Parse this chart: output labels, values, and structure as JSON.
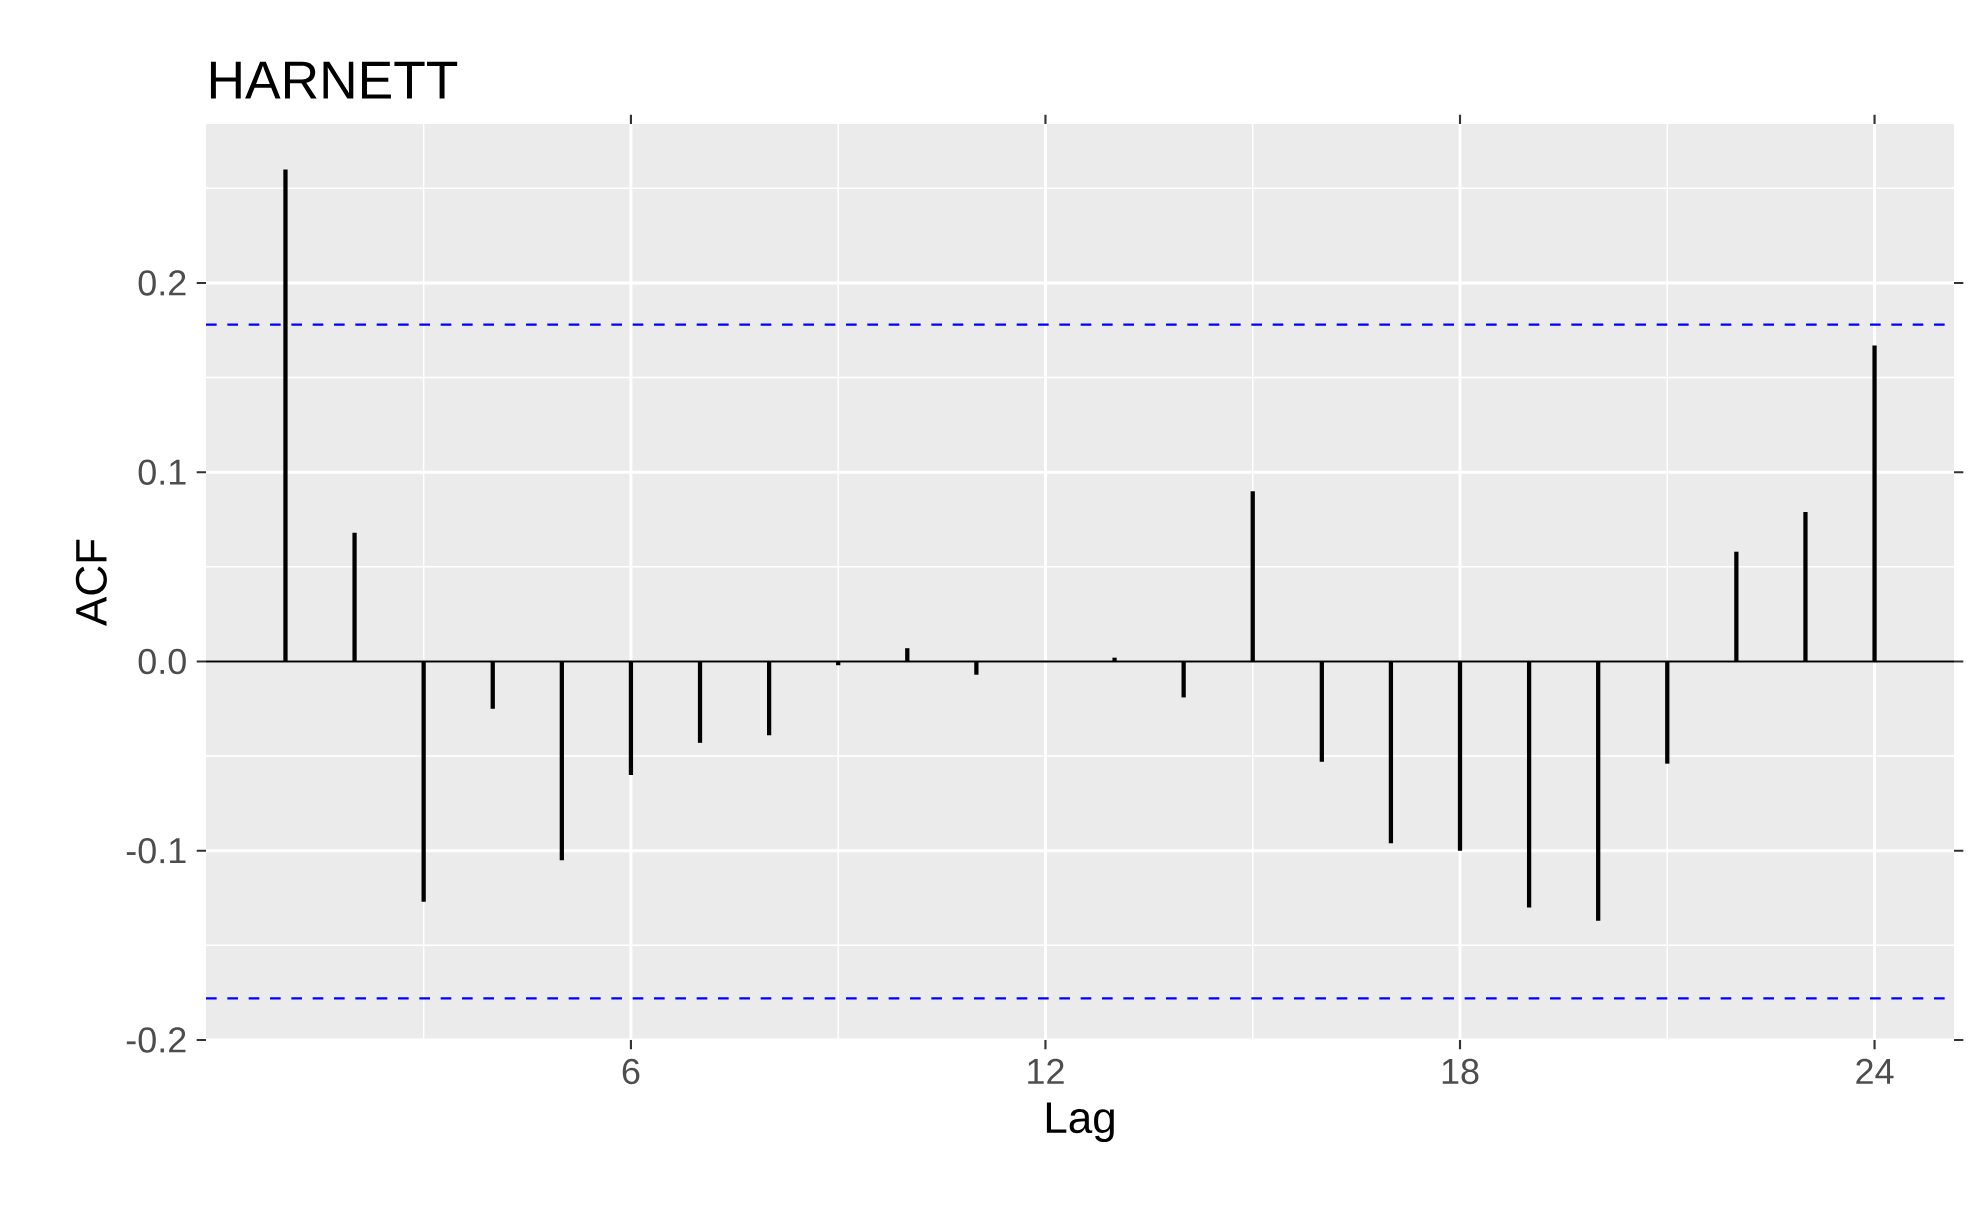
{
  "chart_data": {
    "type": "bar",
    "title": "HARNETT",
    "xlabel": "Lag",
    "ylabel": "ACF",
    "color": "#000000",
    "x": [
      1,
      2,
      3,
      4,
      5,
      6,
      7,
      8,
      9,
      10,
      11,
      12,
      13,
      14,
      15,
      16,
      17,
      18,
      19,
      20,
      21,
      22,
      23,
      24
    ],
    "values": [
      0.26,
      0.068,
      -0.127,
      -0.025,
      -0.105,
      -0.06,
      -0.043,
      -0.039,
      -0.002,
      0.007,
      -0.007,
      0.0,
      0.002,
      -0.019,
      0.09,
      -0.053,
      -0.096,
      -0.1,
      -0.13,
      -0.137,
      -0.054,
      0.058,
      0.079,
      0.167
    ],
    "xlim": [
      -0.15,
      25.15
    ],
    "ylim": [
      -0.2,
      0.284
    ],
    "xticks": [
      6,
      12,
      18,
      24
    ],
    "yticks": [
      {
        "value": -0.2,
        "label": "-0.2"
      },
      {
        "value": -0.1,
        "label": "-0.1"
      },
      {
        "value": 0,
        "label": "0.0"
      },
      {
        "value": 0.1,
        "label": "0.1"
      },
      {
        "value": 0.2,
        "label": "0.2"
      }
    ],
    "grid": true,
    "ref_lines": [
      {
        "axis": "y",
        "value": 0.178,
        "color": "#0000ff",
        "line_style": "dashed"
      },
      {
        "axis": "y",
        "value": -0.178,
        "color": "#0000ff",
        "line_style": "dashed"
      },
      {
        "axis": "y",
        "value": 0,
        "color": "#000000",
        "line_style": "solid"
      }
    ]
  }
}
